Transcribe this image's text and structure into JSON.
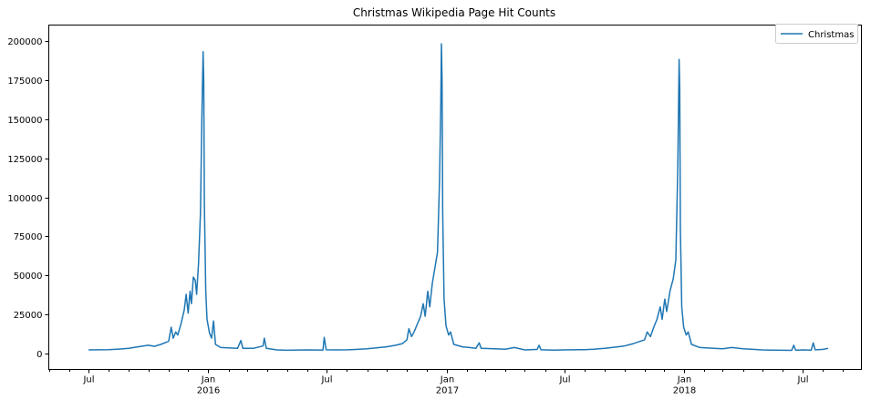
{
  "chart_data": {
    "type": "line",
    "title": "Christmas Wikipedia Page Hit Counts",
    "xlabel": "",
    "ylabel": "",
    "xlim": [
      "2015-05-01",
      "2018-09-30"
    ],
    "ylim": [
      -10000,
      210000
    ],
    "y_ticks": [
      0,
      25000,
      50000,
      75000,
      100000,
      125000,
      150000,
      175000,
      200000
    ],
    "y_tick_labels": [
      "0",
      "25000",
      "50000",
      "75000",
      "100000",
      "125000",
      "150000",
      "175000",
      "200000"
    ],
    "x_major_ticks": [
      {
        "date": "2015-07-01",
        "label": "Jul",
        "sublabel": ""
      },
      {
        "date": "2016-01-01",
        "label": "Jan",
        "sublabel": "2016"
      },
      {
        "date": "2016-07-01",
        "label": "Jul",
        "sublabel": ""
      },
      {
        "date": "2017-01-01",
        "label": "Jan",
        "sublabel": "2017"
      },
      {
        "date": "2017-07-01",
        "label": "Jul",
        "sublabel": ""
      },
      {
        "date": "2018-01-01",
        "label": "Jan",
        "sublabel": "2018"
      },
      {
        "date": "2018-07-01",
        "label": "Jul",
        "sublabel": ""
      }
    ],
    "legend": {
      "position": "upper-right",
      "entries": [
        "Christmas"
      ]
    },
    "grid": false,
    "series": [
      {
        "name": "Christmas",
        "color": "#1f77b4",
        "points": [
          [
            "2015-07-01",
            2500
          ],
          [
            "2015-07-15",
            2600
          ],
          [
            "2015-08-01",
            2700
          ],
          [
            "2015-08-15",
            3000
          ],
          [
            "2015-09-01",
            3500
          ],
          [
            "2015-09-15",
            4500
          ],
          [
            "2015-10-01",
            5500
          ],
          [
            "2015-10-10",
            4800
          ],
          [
            "2015-10-20",
            6000
          ],
          [
            "2015-11-01",
            8000
          ],
          [
            "2015-11-05",
            17000
          ],
          [
            "2015-11-08",
            10000
          ],
          [
            "2015-11-12",
            14000
          ],
          [
            "2015-11-15",
            12000
          ],
          [
            "2015-11-20",
            19000
          ],
          [
            "2015-11-25",
            28000
          ],
          [
            "2015-11-28",
            38000
          ],
          [
            "2015-12-01",
            26000
          ],
          [
            "2015-12-04",
            40000
          ],
          [
            "2015-12-06",
            32000
          ],
          [
            "2015-12-09",
            49000
          ],
          [
            "2015-12-12",
            47000
          ],
          [
            "2015-12-14",
            38000
          ],
          [
            "2015-12-17",
            58000
          ],
          [
            "2015-12-20",
            90000
          ],
          [
            "2015-12-22",
            150000
          ],
          [
            "2015-12-24",
            193000
          ],
          [
            "2015-12-25",
            175000
          ],
          [
            "2015-12-26",
            95000
          ],
          [
            "2015-12-28",
            40000
          ],
          [
            "2015-12-30",
            22000
          ],
          [
            "2016-01-03",
            13000
          ],
          [
            "2016-01-06",
            10000
          ],
          [
            "2016-01-09",
            21000
          ],
          [
            "2016-01-12",
            6000
          ],
          [
            "2016-01-20",
            4000
          ],
          [
            "2016-02-01",
            3800
          ],
          [
            "2016-02-15",
            3500
          ],
          [
            "2016-02-20",
            8500
          ],
          [
            "2016-02-23",
            3500
          ],
          [
            "2016-03-10",
            3500
          ],
          [
            "2016-03-25",
            5000
          ],
          [
            "2016-03-27",
            10000
          ],
          [
            "2016-03-30",
            3500
          ],
          [
            "2016-04-15",
            2500
          ],
          [
            "2016-05-01",
            2300
          ],
          [
            "2016-06-01",
            2500
          ],
          [
            "2016-06-25",
            2400
          ],
          [
            "2016-06-27",
            10500
          ],
          [
            "2016-06-30",
            2600
          ],
          [
            "2016-07-15",
            2500
          ],
          [
            "2016-08-01",
            2600
          ],
          [
            "2016-08-15",
            2800
          ],
          [
            "2016-09-01",
            3200
          ],
          [
            "2016-09-15",
            3800
          ],
          [
            "2016-10-01",
            4500
          ],
          [
            "2016-10-15",
            5500
          ],
          [
            "2016-10-25",
            6500
          ],
          [
            "2016-11-01",
            9000
          ],
          [
            "2016-11-04",
            16000
          ],
          [
            "2016-11-08",
            11000
          ],
          [
            "2016-11-12",
            14000
          ],
          [
            "2016-11-18",
            20000
          ],
          [
            "2016-11-22",
            24000
          ],
          [
            "2016-11-26",
            32000
          ],
          [
            "2016-11-29",
            24000
          ],
          [
            "2016-12-03",
            40000
          ],
          [
            "2016-12-06",
            30000
          ],
          [
            "2016-12-10",
            45000
          ],
          [
            "2016-12-14",
            55000
          ],
          [
            "2016-12-18",
            65000
          ],
          [
            "2016-12-21",
            110000
          ],
          [
            "2016-12-23",
            160000
          ],
          [
            "2016-12-24",
            198000
          ],
          [
            "2016-12-25",
            175000
          ],
          [
            "2016-12-26",
            90000
          ],
          [
            "2016-12-28",
            35000
          ],
          [
            "2016-12-31",
            18000
          ],
          [
            "2017-01-04",
            12000
          ],
          [
            "2017-01-07",
            14000
          ],
          [
            "2017-01-12",
            6000
          ],
          [
            "2017-01-25",
            4500
          ],
          [
            "2017-02-05",
            4000
          ],
          [
            "2017-02-15",
            3500
          ],
          [
            "2017-02-20",
            7000
          ],
          [
            "2017-02-23",
            3500
          ],
          [
            "2017-03-15",
            3200
          ],
          [
            "2017-04-01",
            3000
          ],
          [
            "2017-04-15",
            4000
          ],
          [
            "2017-05-01",
            2500
          ],
          [
            "2017-05-20",
            2800
          ],
          [
            "2017-05-23",
            5500
          ],
          [
            "2017-05-26",
            2600
          ],
          [
            "2017-06-15",
            2400
          ],
          [
            "2017-07-01",
            2500
          ],
          [
            "2017-07-15",
            2600
          ],
          [
            "2017-08-01",
            2700
          ],
          [
            "2017-08-15",
            3000
          ],
          [
            "2017-09-01",
            3500
          ],
          [
            "2017-09-15",
            4200
          ],
          [
            "2017-10-01",
            5000
          ],
          [
            "2017-10-15",
            6500
          ],
          [
            "2017-11-01",
            9000
          ],
          [
            "2017-11-05",
            14000
          ],
          [
            "2017-11-10",
            11000
          ],
          [
            "2017-11-15",
            17000
          ],
          [
            "2017-11-20",
            22000
          ],
          [
            "2017-11-25",
            30000
          ],
          [
            "2017-11-28",
            22000
          ],
          [
            "2017-12-02",
            35000
          ],
          [
            "2017-12-05",
            27000
          ],
          [
            "2017-12-10",
            40000
          ],
          [
            "2017-12-15",
            48000
          ],
          [
            "2017-12-19",
            60000
          ],
          [
            "2017-12-22",
            120000
          ],
          [
            "2017-12-24",
            188000
          ],
          [
            "2017-12-25",
            170000
          ],
          [
            "2017-12-26",
            80000
          ],
          [
            "2017-12-28",
            30000
          ],
          [
            "2017-12-31",
            17000
          ],
          [
            "2018-01-04",
            12000
          ],
          [
            "2018-01-07",
            14000
          ],
          [
            "2018-01-12",
            6000
          ],
          [
            "2018-01-25",
            4000
          ],
          [
            "2018-02-15",
            3500
          ],
          [
            "2018-03-01",
            3200
          ],
          [
            "2018-03-15",
            4000
          ],
          [
            "2018-04-01",
            3200
          ],
          [
            "2018-05-01",
            2500
          ],
          [
            "2018-05-15",
            2400
          ],
          [
            "2018-06-01",
            2300
          ],
          [
            "2018-06-15",
            2200
          ],
          [
            "2018-06-18",
            5500
          ],
          [
            "2018-06-21",
            2300
          ],
          [
            "2018-07-01",
            2500
          ],
          [
            "2018-07-15",
            2400
          ],
          [
            "2018-07-18",
            7000
          ],
          [
            "2018-07-21",
            2600
          ],
          [
            "2018-08-01",
            2800
          ],
          [
            "2018-08-10",
            3500
          ]
        ]
      }
    ]
  }
}
